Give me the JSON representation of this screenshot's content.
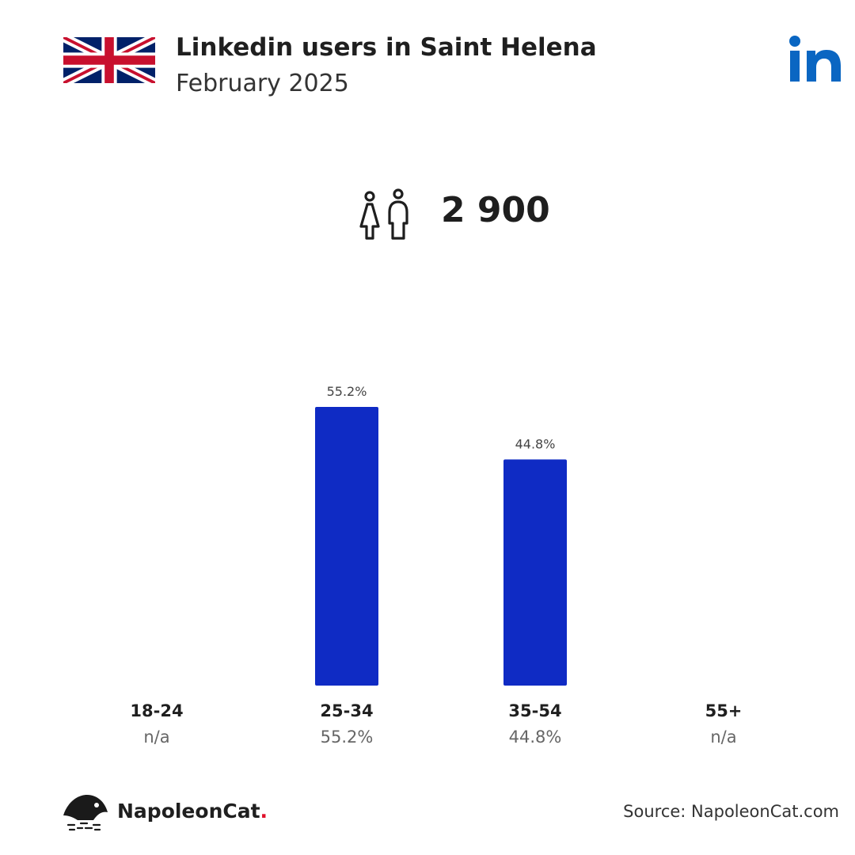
{
  "header": {
    "title": "Linkedin users in Saint Helena",
    "subtitle": "February 2025",
    "flag_icon": "uk-flag-icon",
    "platform_icon": "linkedin-logo-icon",
    "platform_color": "#0a66c2"
  },
  "summary": {
    "users_icon": "male-female-users-icon",
    "total_users": "2 900"
  },
  "chart_data": {
    "type": "bar",
    "categories": [
      "18-24",
      "25-34",
      "35-54",
      "55+"
    ],
    "values": [
      null,
      55.2,
      44.8,
      null
    ],
    "bar_labels": [
      "",
      "55.2%",
      "44.8%",
      ""
    ],
    "value_labels": [
      "n/a",
      "55.2%",
      "44.8%",
      "n/a"
    ],
    "unit": "%",
    "ylim": [
      0,
      55.2
    ],
    "grid": false,
    "bar_color": "#0f2bc4"
  },
  "footer": {
    "brand_name": "NapoleonCat",
    "brand_dot": ".",
    "brand_icon": "napoleoncat-logo-icon",
    "brand_accent": "#e0102a",
    "source": "Source: NapoleonCat.com"
  }
}
